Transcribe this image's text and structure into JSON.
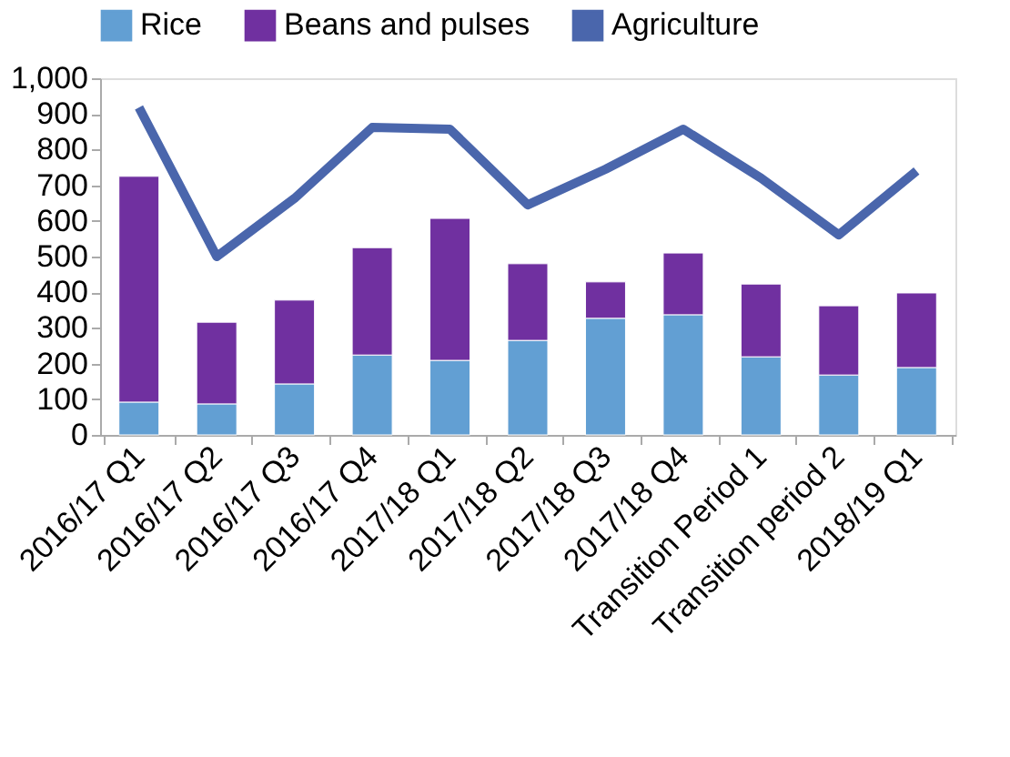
{
  "chart_data": {
    "type": "bar",
    "stacked": true,
    "legend": "top",
    "grid": false,
    "categories": [
      "2016/17 Q1",
      "2016/17 Q2",
      "2016/17 Q3",
      "2016/17 Q4",
      "2017/18 Q1",
      "2017/18 Q2",
      "2017/18 Q3",
      "2017/18 Q4",
      "Transition Period 1",
      "Transition period 2",
      "2018/19 Q1"
    ],
    "ylim": [
      0,
      1000
    ],
    "yticks": [
      0,
      100,
      200,
      300,
      400,
      500,
      600,
      700,
      800,
      900,
      {
        "value": 1000,
        "label": "1,000"
      }
    ],
    "series": [
      {
        "name": "Rice",
        "color": "#629fd3",
        "values": [
          92,
          87,
          143,
          224,
          209,
          265,
          327,
          337,
          219,
          168,
          189
        ]
      },
      {
        "name": "Beans and pulses",
        "color": "#7030a0",
        "values": [
          633,
          229,
          235,
          301,
          398,
          215,
          102,
          173,
          204,
          194,
          209
        ]
      },
      {
        "name": "Agriculture",
        "color": "#4a66ac",
        "type": "line",
        "values": [
          918,
          500,
          663,
          862,
          857,
          645,
          745,
          857,
          720,
          561,
          740
        ]
      }
    ]
  }
}
